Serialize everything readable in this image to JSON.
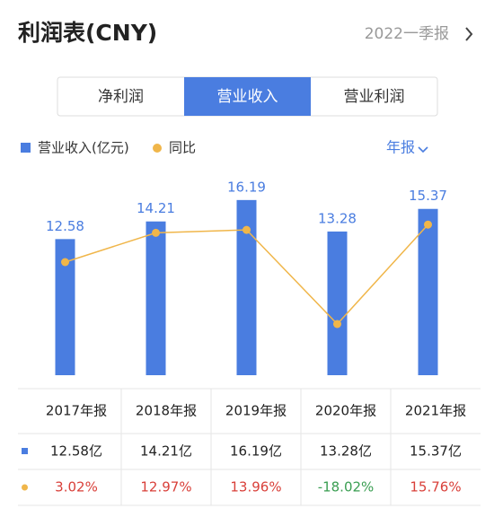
{
  "header": {
    "title": "利润表(CNY)",
    "period": "2022一季报"
  },
  "tabs": [
    "净利润",
    "营业收入",
    "营业利润"
  ],
  "chart_data": {
    "type": "bar",
    "period_selector": "年报",
    "categories": [
      "2017年报",
      "2018年报",
      "2019年报",
      "2020年报",
      "2021年报"
    ],
    "ylim": [
      0,
      18.5
    ],
    "y2lim": [
      -35.4,
      32.6
    ],
    "up_color": "#d9403a",
    "down_color": "#3a9e52",
    "series": [
      {
        "name": "营业收入(亿元)",
        "type": "bar",
        "color": "#4a7de0",
        "values": [
          12.58,
          14.21,
          16.19,
          13.28,
          15.37
        ],
        "value_labels": [
          "12.58亿",
          "14.21亿",
          "16.19亿",
          "13.28亿",
          "15.37亿"
        ]
      },
      {
        "name": "同比",
        "type": "line",
        "axis": "y2",
        "color": "#f0b64a",
        "values": [
          3.02,
          12.97,
          13.96,
          -18.02,
          15.76
        ],
        "value_labels": [
          "3.02%",
          "12.97%",
          "13.96%",
          "-18.02%",
          "15.76%"
        ]
      }
    ]
  }
}
